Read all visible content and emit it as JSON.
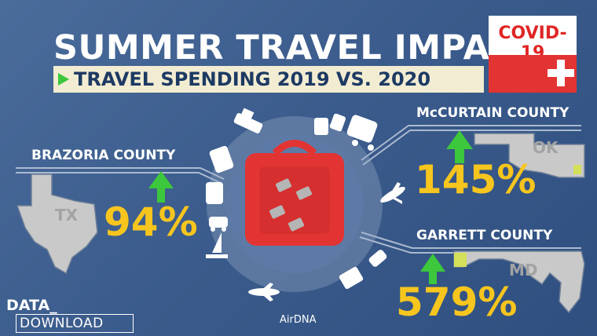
{
  "header": {
    "title": "SUMMER TRAVEL IMPACT",
    "subtitle": "TRAVEL SPENDING 2019 VS. 2020",
    "badge": "COVID-19"
  },
  "counties": [
    {
      "name": "BRAZORIA COUNTY",
      "state": "TX",
      "change": "94%"
    },
    {
      "name": "McCURTAIN COUNTY",
      "state": "OK",
      "change": "145%"
    },
    {
      "name": "GARRETT COUNTY",
      "state": "MD",
      "change": "579%"
    }
  ],
  "footer": {
    "credit": "AirDNA",
    "brand_top": "DATA_",
    "brand_bottom": "DOWNLOAD"
  },
  "colors": {
    "background": "#3b5c8c",
    "accent_yellow": "#f6c51e",
    "arrow_green": "#3cc73c",
    "suitcase_red": "#e33434",
    "map_gray": "#c9c9c9"
  },
  "icons": [
    "suitcase-icon",
    "ship-icon",
    "bus-icon",
    "train-icon",
    "airplane-icon",
    "sailboat-icon",
    "car-icon",
    "rv-icon",
    "up-arrow-icon"
  ]
}
